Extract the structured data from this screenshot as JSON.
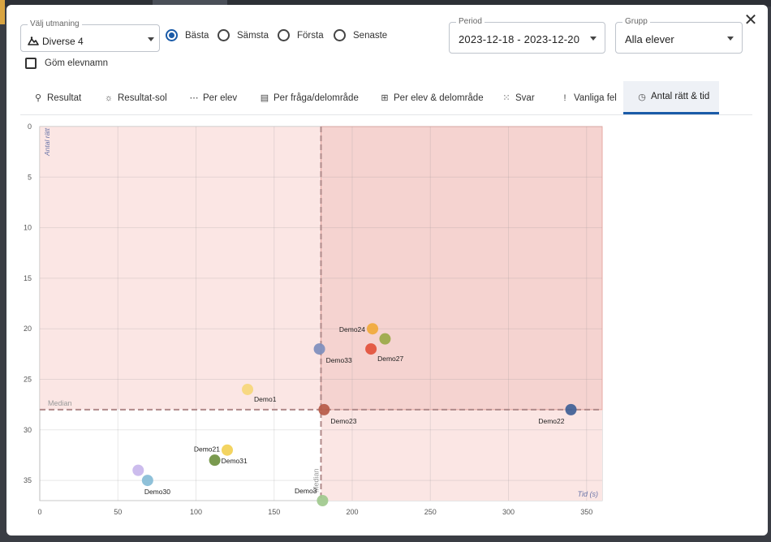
{
  "challenge": {
    "label": "Välj utmaning",
    "value": "Diverse 4",
    "icon": "mountain-icon"
  },
  "radios": [
    {
      "label": "Bästa",
      "checked": true
    },
    {
      "label": "Sämsta",
      "checked": false
    },
    {
      "label": "Första",
      "checked": false
    },
    {
      "label": "Senaste",
      "checked": false
    }
  ],
  "hide_names": {
    "label": "Göm elevnamn",
    "checked": false
  },
  "period": {
    "label": "Period",
    "value": "2023-12-18 - 2023-12-20"
  },
  "group": {
    "label": "Grupp",
    "value": "Alla elever"
  },
  "close_icon": "close-icon",
  "tabs": [
    {
      "label": "Resultat",
      "icon": "binoculars-icon",
      "glyph": "⚲",
      "active": false
    },
    {
      "label": "Resultat-sol",
      "icon": "sun-icon",
      "glyph": "☼",
      "active": false
    },
    {
      "label": "Per elev",
      "icon": "students-icon",
      "glyph": "⋯",
      "active": false
    },
    {
      "label": "Per fråga/delområde",
      "icon": "bar-chart-icon",
      "glyph": "▤",
      "active": false
    },
    {
      "label": "Per elev & delområde",
      "icon": "grid-icon",
      "glyph": "⊞",
      "active": false
    },
    {
      "label": "Svar",
      "icon": "dots-grid-icon",
      "glyph": "⁙",
      "active": false
    },
    {
      "label": "Vanliga fel",
      "icon": "exclamation-icon",
      "glyph": "!",
      "active": false
    },
    {
      "label": "Antal rätt & tid",
      "icon": "clock-icon",
      "glyph": "◷",
      "active": true
    }
  ],
  "chart_data": {
    "type": "scatter",
    "xlabel": "Tid (s)",
    "ylabel": "Antal rätt",
    "xlim": [
      0,
      360
    ],
    "ylim": [
      0,
      37
    ],
    "y_inverted": true,
    "x_ticks": [
      0,
      50,
      100,
      150,
      200,
      250,
      300,
      350
    ],
    "y_ticks": [
      0,
      5,
      10,
      15,
      20,
      25,
      30,
      35
    ],
    "median_x": 180,
    "median_y": 28,
    "median_label": "Median",
    "grid": true,
    "colors": {
      "quadrant_top_right": "#f5d3d0",
      "quadrant_other": "#fbe6e4",
      "median_line": "#b08a8a"
    },
    "points": [
      {
        "name": "Demo24",
        "x": 213,
        "y": 20,
        "color": "#f0a93a",
        "show_label": true
      },
      {
        "name": "",
        "x": 221,
        "y": 21,
        "color": "#9aa946",
        "show_label": false
      },
      {
        "name": "Demo27",
        "x": 212,
        "y": 22,
        "color": "#e2503a",
        "show_label": true
      },
      {
        "name": "Demo33",
        "x": 179,
        "y": 22,
        "color": "#7d8ebd",
        "show_label": true
      },
      {
        "name": "Demo1",
        "x": 133,
        "y": 26,
        "color": "#f6d77a",
        "show_label": true
      },
      {
        "name": "Demo23",
        "x": 182,
        "y": 28,
        "color": "#b65a48",
        "show_label": true
      },
      {
        "name": "Demo22",
        "x": 340,
        "y": 28,
        "color": "#3f5f96",
        "show_label": true
      },
      {
        "name": "Demo21",
        "x": 120,
        "y": 32,
        "color": "#f2d054",
        "show_label": true
      },
      {
        "name": "Demo31",
        "x": 112,
        "y": 33,
        "color": "#6f9140",
        "show_label": true
      },
      {
        "name": "",
        "x": 63,
        "y": 34,
        "color": "#c8b6ec",
        "show_label": false
      },
      {
        "name": "Demo30",
        "x": 69,
        "y": 35,
        "color": "#86bcd6",
        "show_label": true
      },
      {
        "name": "Demo3",
        "x": 181,
        "y": 37,
        "color": "#9fc98d",
        "show_label": true
      }
    ]
  }
}
